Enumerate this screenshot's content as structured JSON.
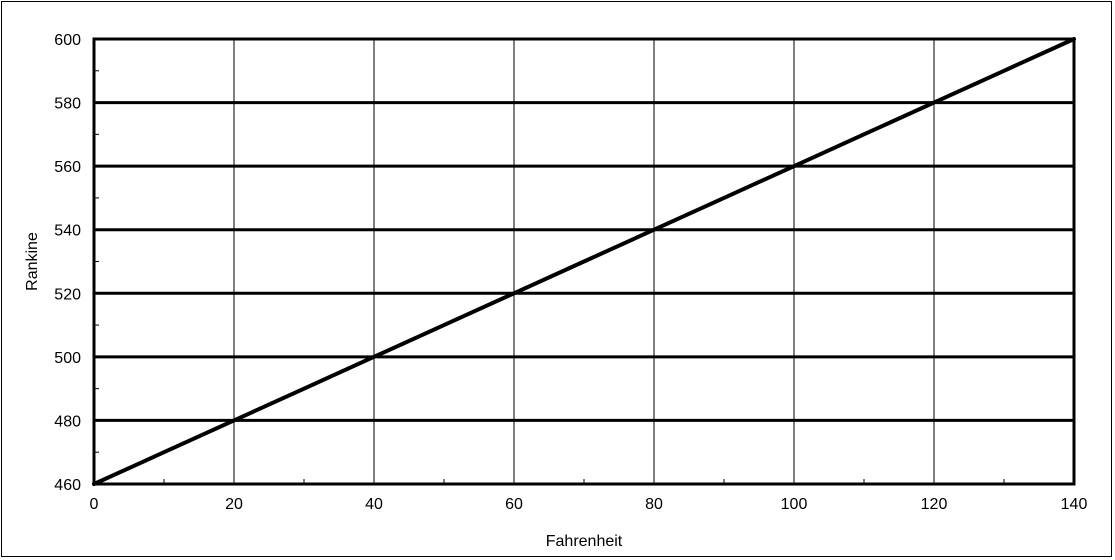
{
  "chart_data": {
    "type": "line",
    "title": "",
    "xlabel": "Fahrenheit",
    "ylabel": "Rankine",
    "xlim": [
      0,
      140
    ],
    "ylim": [
      460,
      600
    ],
    "x_ticks": [
      0,
      20,
      40,
      60,
      80,
      100,
      120,
      140
    ],
    "y_ticks": [
      460,
      480,
      500,
      520,
      540,
      560,
      580,
      600
    ],
    "x_tick_labels": [
      "0",
      "20",
      "40",
      "60",
      "80",
      "100",
      "120",
      "140"
    ],
    "y_tick_labels": [
      "460",
      "480",
      "500",
      "520",
      "540",
      "560",
      "580",
      "600"
    ],
    "grid": {
      "horizontal": true,
      "vertical": true
    },
    "legend": "none",
    "series": [
      {
        "x": [
          0,
          10,
          20,
          30,
          40,
          50,
          60,
          70,
          80,
          90,
          100,
          110,
          120,
          130,
          140
        ],
        "y": [
          460,
          470,
          480,
          490,
          500,
          510,
          520,
          530,
          540,
          550,
          560,
          570,
          580,
          590,
          600
        ],
        "color": "#000000"
      }
    ]
  }
}
